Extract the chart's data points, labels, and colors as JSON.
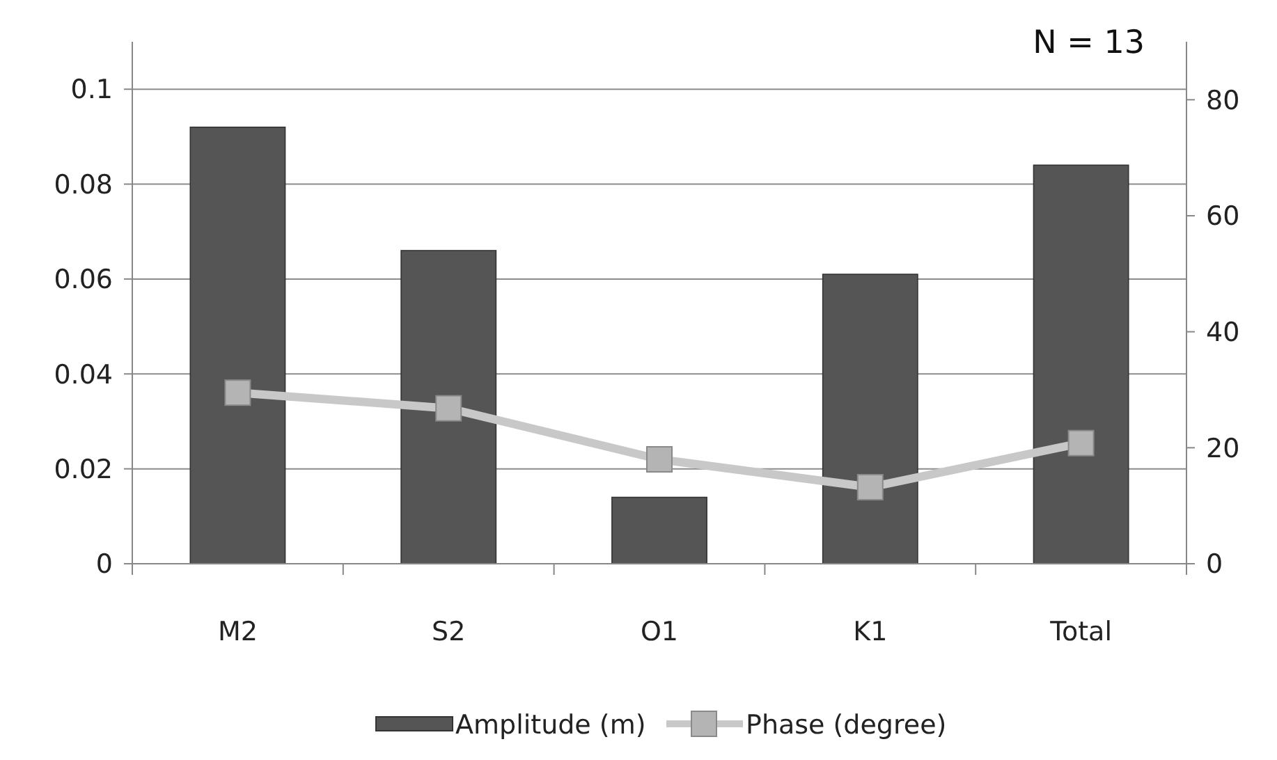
{
  "chart_data": {
    "type": "bar",
    "categories": [
      "M2",
      "S2",
      "O1",
      "K1",
      "Total"
    ],
    "series": [
      {
        "name": "Amplitude (m)",
        "color": "#555555",
        "values": [
          0.092,
          0.066,
          0.014,
          0.061,
          0.084
        ]
      },
      {
        "name": "Phase (degree)",
        "type": "line",
        "axis": "y2",
        "color": "#c8c8c8",
        "values": [
          29.5,
          26.8,
          18,
          13.2,
          20.8
        ]
      }
    ],
    "ylim": [
      0,
      0.11
    ],
    "yticks": [
      {
        "value": 0,
        "label": "0"
      },
      {
        "value": 0.02,
        "label": "0.02"
      },
      {
        "value": 0.04,
        "label": "0.04"
      },
      {
        "value": 0.06,
        "label": "0.06"
      },
      {
        "value": 0.08,
        "label": "0.08"
      },
      {
        "value": 0.1,
        "label": "0.1"
      }
    ],
    "y2lim": [
      0,
      90
    ],
    "y2ticks": [
      0,
      20,
      40,
      60,
      80
    ],
    "grid": "y",
    "legend": "bottom",
    "marker": "square",
    "annotations": [
      "N = 13"
    ]
  }
}
